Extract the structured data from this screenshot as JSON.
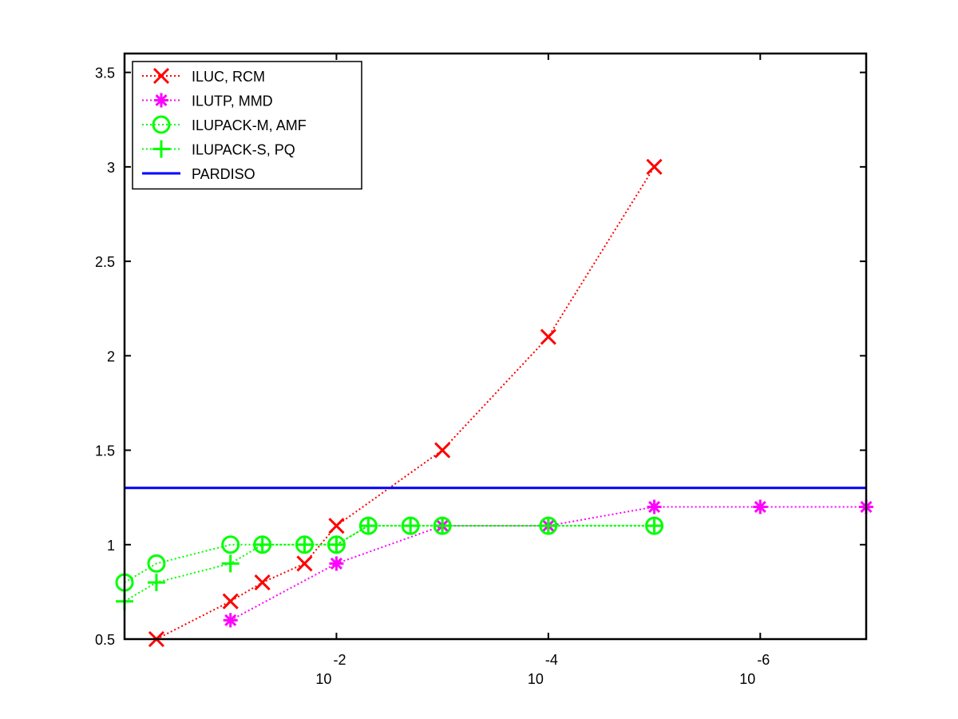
{
  "chart_data": {
    "type": "line",
    "title": "",
    "xlabel": "",
    "ylabel": "",
    "x_scale": "log",
    "x_reversed": true,
    "xlim": [
      1.0,
      1e-07
    ],
    "ylim": [
      0.5,
      3.6
    ],
    "grid": false,
    "legend_position": "top-left",
    "x_ticks": [
      {
        "value": 0.01,
        "base": "10",
        "exponent": "-2"
      },
      {
        "value": 0.0001,
        "base": "10",
        "exponent": "-4"
      },
      {
        "value": 1e-06,
        "base": "10",
        "exponent": "-6"
      }
    ],
    "y_ticks": [
      {
        "value": 0.5,
        "label": "0.5"
      },
      {
        "value": 1,
        "label": "1"
      },
      {
        "value": 1.5,
        "label": "1.5"
      },
      {
        "value": 2,
        "label": "2"
      },
      {
        "value": 2.5,
        "label": "2.5"
      },
      {
        "value": 3,
        "label": "3"
      },
      {
        "value": 3.5,
        "label": "3.5"
      }
    ],
    "series": [
      {
        "name": "ILUC, RCM",
        "color": "#ff0000",
        "marker": "x",
        "line": "dotted",
        "x": [
          0.5,
          0.1,
          0.05,
          0.02,
          0.01,
          0.001,
          0.0001,
          1e-05
        ],
        "y": [
          0.5,
          0.7,
          0.8,
          0.9,
          1.1,
          1.5,
          2.1,
          3.0
        ]
      },
      {
        "name": "ILUTP, MMD",
        "color": "#ff00ff",
        "marker": "asterisk",
        "line": "dotted",
        "x": [
          0.1,
          0.01,
          0.001,
          0.0001,
          1e-05,
          1e-06,
          1e-07
        ],
        "y": [
          0.6,
          0.9,
          1.1,
          1.1,
          1.2,
          1.2,
          1.2
        ]
      },
      {
        "name": "ILUPACK-M, AMF",
        "color": "#00ff00",
        "marker": "circle",
        "line": "dotted",
        "x": [
          1.0,
          0.5,
          0.1,
          0.05,
          0.02,
          0.01,
          0.005,
          0.002,
          0.001,
          0.0001,
          1e-05
        ],
        "y": [
          0.8,
          0.9,
          1.0,
          1.0,
          1.0,
          1.0,
          1.1,
          1.1,
          1.1,
          1.1,
          1.1
        ]
      },
      {
        "name": "ILUPACK-S, PQ",
        "color": "#00ff00",
        "marker": "plus",
        "line": "dotted",
        "x": [
          1.0,
          0.5,
          0.1,
          0.05,
          0.02,
          0.01,
          0.005,
          0.002,
          0.001,
          0.0001,
          1e-05
        ],
        "y": [
          0.7,
          0.8,
          0.9,
          1.0,
          1.0,
          1.0,
          1.1,
          1.1,
          1.1,
          1.1,
          1.1
        ]
      },
      {
        "name": "PARDISO",
        "color": "#0000ff",
        "marker": "none",
        "line": "solid",
        "x": [
          1.0,
          1e-07
        ],
        "y": [
          1.3,
          1.3
        ]
      }
    ]
  }
}
